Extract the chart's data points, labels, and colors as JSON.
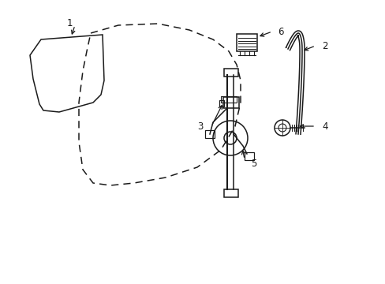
{
  "bg_color": "#ffffff",
  "line_color": "#1a1a1a",
  "label_color": "#111111",
  "figsize": [
    4.89,
    3.6
  ],
  "dpi": 100
}
